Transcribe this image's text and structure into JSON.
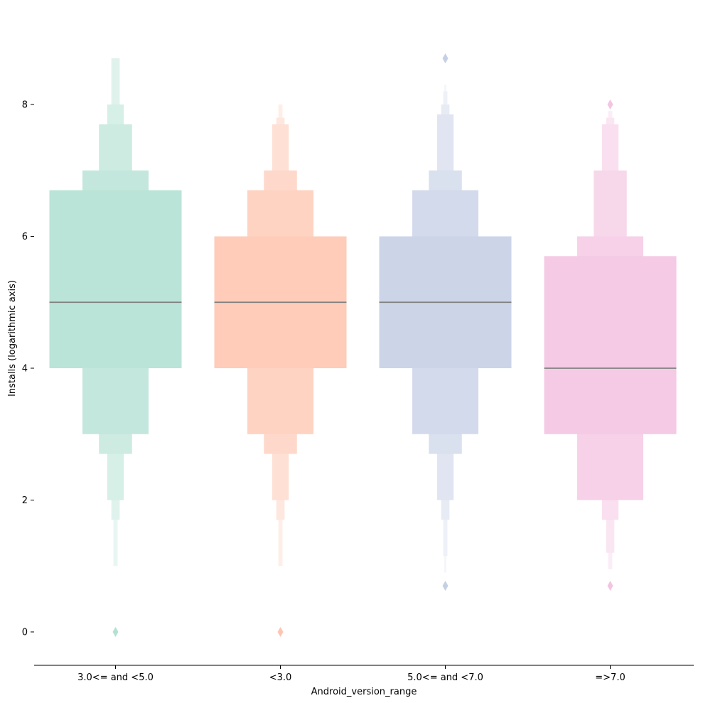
{
  "chart_data": {
    "type": "boxen",
    "title": "",
    "xlabel": "Android_version_range",
    "ylabel": "Installs (logarithmic axis)",
    "ylim": [
      -0.5,
      9.2
    ],
    "yticks": [
      0,
      2,
      4,
      6,
      8
    ],
    "grid": false,
    "categories": [
      "3.0<= and <5.0",
      "<3.0",
      "5.0<= and <7.0",
      "=>7.0"
    ],
    "colors": [
      "#66c2a5",
      "#fc8d62",
      "#8da0cb",
      "#e78ac3"
    ],
    "series": [
      {
        "category": "3.0<= and <5.0",
        "median": 5.0,
        "levels": [
          [
            4.0,
            6.7
          ],
          [
            3.0,
            7.0
          ],
          [
            2.7,
            7.7
          ],
          [
            2.0,
            8.0
          ],
          [
            1.7,
            8.7
          ],
          [
            1.0,
            8.7
          ]
        ],
        "outliers": [
          0.0
        ]
      },
      {
        "category": "<3.0",
        "median": 5.0,
        "levels": [
          [
            4.0,
            6.0
          ],
          [
            3.0,
            6.7
          ],
          [
            2.7,
            7.0
          ],
          [
            2.0,
            7.7
          ],
          [
            1.7,
            7.8
          ],
          [
            1.0,
            8.0
          ]
        ],
        "outliers": [
          0.0
        ]
      },
      {
        "category": "5.0<= and <7.0",
        "median": 5.0,
        "levels": [
          [
            4.0,
            6.0
          ],
          [
            3.0,
            6.7
          ],
          [
            2.7,
            7.0
          ],
          [
            2.0,
            7.85
          ],
          [
            1.7,
            8.0
          ],
          [
            1.15,
            8.2
          ],
          [
            0.9,
            8.3
          ]
        ],
        "outliers": [
          0.7,
          8.7
        ]
      },
      {
        "category": "=>7.0",
        "median": 4.0,
        "levels": [
          [
            3.0,
            5.7
          ],
          [
            2.0,
            6.0
          ],
          [
            2.0,
            7.0
          ],
          [
            1.7,
            7.7
          ],
          [
            1.2,
            7.8
          ],
          [
            0.95,
            7.9
          ]
        ],
        "outliers": [
          0.7,
          8.0
        ]
      }
    ]
  }
}
